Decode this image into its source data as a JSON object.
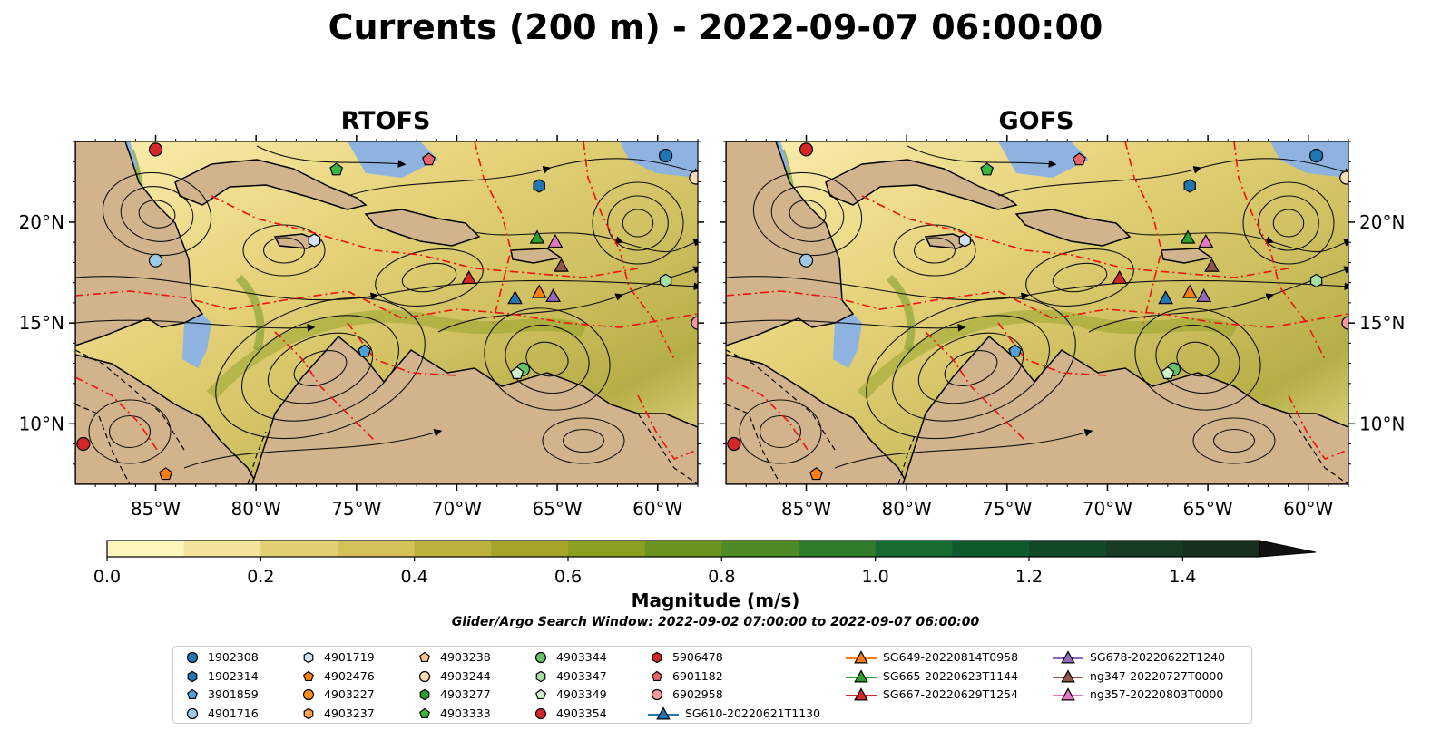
{
  "title": "Currents (200 m) - 2022-09-07 06:00:00",
  "panels": [
    {
      "title": "RTOFS"
    },
    {
      "title": "GOFS"
    }
  ],
  "axes": {
    "lon_ticks": [
      "85°W",
      "80°W",
      "75°W",
      "70°W",
      "65°W",
      "60°W"
    ],
    "lat_ticks": [
      "20°N",
      "15°N",
      "10°N"
    ],
    "lon_range": [
      -89,
      -58
    ],
    "lat_range": [
      7,
      24
    ]
  },
  "colorbar": {
    "label": "Magnitude (m/s)",
    "ticks": [
      "0.0",
      "0.2",
      "0.4",
      "0.6",
      "0.8",
      "1.0",
      "1.2",
      "1.4"
    ],
    "range": [
      0,
      1.5
    ],
    "extend": "max",
    "colors": [
      "#fdf6bd",
      "#f2e49a",
      "#e2cf74",
      "#d4c158",
      "#bdb13d",
      "#a6a52a",
      "#8a9e1f",
      "#6a9320",
      "#4e8a25",
      "#2f7c2a",
      "#166b30",
      "#0f5a2c",
      "#124a26",
      "#163b22",
      "#172f1f"
    ]
  },
  "subtitle": "Glider/Argo Search Window: 2022-09-02 07:00:00 to 2022-09-07 06:00:00",
  "colors": {
    "land": "#d2b48c",
    "shelf": "#8fb3e0",
    "eez": "#ee1111",
    "stream": "#111111"
  },
  "legend": [
    {
      "label": "1902308",
      "marker": "circle",
      "color": "#1f77b4"
    },
    {
      "label": "1902314",
      "marker": "hexagon",
      "color": "#1f77b4"
    },
    {
      "label": "3901859",
      "marker": "pentagon",
      "color": "#4f9fd8"
    },
    {
      "label": "4901716",
      "marker": "circle",
      "color": "#9ecae9"
    },
    {
      "label": "4901719",
      "marker": "hexagon",
      "color": "#cfe3f5"
    },
    {
      "label": "4902476",
      "marker": "pentagon",
      "color": "#ff7f0e"
    },
    {
      "label": "4903227",
      "marker": "circle",
      "color": "#ff8c1a"
    },
    {
      "label": "4903237",
      "marker": "hexagon",
      "color": "#ffa64d"
    },
    {
      "label": "4903238",
      "marker": "pentagon",
      "color": "#ffc48c"
    },
    {
      "label": "4903244",
      "marker": "circle",
      "color": "#ffdcb8"
    },
    {
      "label": "4903277",
      "marker": "hexagon",
      "color": "#2ca02c"
    },
    {
      "label": "4903333",
      "marker": "pentagon",
      "color": "#3cb63c"
    },
    {
      "label": "4903344",
      "marker": "circle",
      "color": "#66c266"
    },
    {
      "label": "4903347",
      "marker": "hexagon",
      "color": "#a6e0a0"
    },
    {
      "label": "4903349",
      "marker": "pentagon",
      "color": "#d0f2c8"
    },
    {
      "label": "4903354",
      "marker": "circle",
      "color": "#d62728"
    },
    {
      "label": "5906478",
      "marker": "hexagon",
      "color": "#d62728"
    },
    {
      "label": "6901182",
      "marker": "pentagon",
      "color": "#e8646a"
    },
    {
      "label": "6902958",
      "marker": "circle",
      "color": "#f4999c"
    },
    {
      "label": "SG610-20220621T1130",
      "marker": "triangle-line",
      "color": "#1f77b4"
    },
    {
      "label": "SG649-20220814T0958",
      "marker": "triangle-line",
      "color": "#ff7f0e"
    },
    {
      "label": "SG665-20220623T1144",
      "marker": "triangle-line",
      "color": "#2ca02c"
    },
    {
      "label": "SG667-20220629T1254",
      "marker": "triangle-line",
      "color": "#d62728"
    },
    {
      "label": "SG678-20220622T1240",
      "marker": "triangle-line",
      "color": "#9467bd"
    },
    {
      "label": "ng347-20220727T0000",
      "marker": "triangle-line",
      "color": "#8c564b"
    },
    {
      "label": "ng357-20220803T0000",
      "marker": "triangle-line",
      "color": "#e377c2"
    }
  ],
  "markers": [
    {
      "id": "1902308",
      "lon": -59.6,
      "lat": 23.3,
      "marker": "circle",
      "color": "#1f77b4"
    },
    {
      "id": "4901716",
      "lon": -85.0,
      "lat": 18.1,
      "marker": "circle",
      "color": "#9ecae9"
    },
    {
      "id": "4901719",
      "lon": -77.1,
      "lat": 19.1,
      "marker": "hexagon",
      "color": "#cfe3f5"
    },
    {
      "id": "1902314",
      "lon": -65.9,
      "lat": 21.8,
      "marker": "hexagon",
      "color": "#1f77b4"
    },
    {
      "id": "3901859",
      "lon": -74.6,
      "lat": 13.6,
      "marker": "pentagon",
      "color": "#4f9fd8"
    },
    {
      "id": "4902476",
      "lon": -84.5,
      "lat": 7.5,
      "marker": "pentagon",
      "color": "#ff7f0e"
    },
    {
      "id": "4903354",
      "lon": -88.6,
      "lat": 9.0,
      "marker": "circle",
      "color": "#d62728"
    },
    {
      "id": "4903354b",
      "lon": -85.0,
      "lat": 23.6,
      "marker": "circle",
      "color": "#d62728"
    },
    {
      "id": "6901182",
      "lon": -71.4,
      "lat": 23.1,
      "marker": "pentagon",
      "color": "#e8646a"
    },
    {
      "id": "4903333",
      "lon": -76.0,
      "lat": 22.6,
      "marker": "pentagon",
      "color": "#3cb63c"
    },
    {
      "id": "4903344",
      "lon": -66.7,
      "lat": 12.7,
      "marker": "circle",
      "color": "#66c266"
    },
    {
      "id": "4903349",
      "lon": -67.0,
      "lat": 12.5,
      "marker": "pentagon",
      "color": "#d0f2c8"
    },
    {
      "id": "4903347",
      "lon": -59.6,
      "lat": 17.1,
      "marker": "hexagon",
      "color": "#a6e0a0"
    },
    {
      "id": "6902958",
      "lon": -58.0,
      "lat": 15.0,
      "marker": "circle",
      "color": "#f4999c"
    },
    {
      "id": "4903244",
      "lon": -58.1,
      "lat": 22.2,
      "marker": "circle",
      "color": "#ffdcb8"
    },
    {
      "id": "SG610",
      "lon": -67.1,
      "lat": 16.2,
      "marker": "triangle",
      "color": "#1f77b4"
    },
    {
      "id": "SG649",
      "lon": -65.9,
      "lat": 16.5,
      "marker": "triangle",
      "color": "#ff7f0e"
    },
    {
      "id": "SG665",
      "lon": -66.0,
      "lat": 19.2,
      "marker": "triangle",
      "color": "#2ca02c"
    },
    {
      "id": "SG667",
      "lon": -69.4,
      "lat": 17.2,
      "marker": "triangle",
      "color": "#d62728"
    },
    {
      "id": "SG678",
      "lon": -65.2,
      "lat": 16.3,
      "marker": "triangle",
      "color": "#9467bd"
    },
    {
      "id": "ng347",
      "lon": -64.8,
      "lat": 17.8,
      "marker": "triangle",
      "color": "#8c564b"
    },
    {
      "id": "ng357",
      "lon": -65.1,
      "lat": 19.0,
      "marker": "triangle",
      "color": "#e377c2"
    }
  ]
}
